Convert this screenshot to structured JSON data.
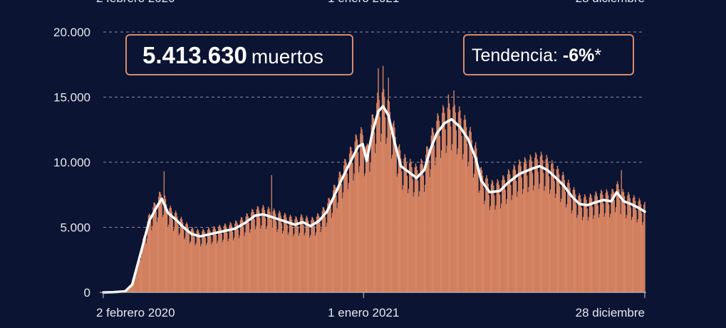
{
  "headline": {
    "total_value": "5.413.630",
    "total_unit": "muertos"
  },
  "trend": {
    "label": "Tendencia:",
    "value": "-6%",
    "mark": "*"
  },
  "colors": {
    "background": "#0b1432",
    "bars": "#e2926f",
    "bar_edge": "#bf6a4c",
    "line": "#ffffff",
    "grid": "#8a8fa3"
  },
  "chart_data": {
    "type": "bar",
    "title": "",
    "xlabel": "",
    "ylabel": "",
    "ylim": [
      0,
      20000
    ],
    "yticks": [
      "0",
      "5.000",
      "10.000",
      "15.000",
      "20.000"
    ],
    "ytick_values": [
      0,
      5000,
      10000,
      15000,
      20000
    ],
    "x_range": [
      "2020-02-02",
      "2021-12-28"
    ],
    "xtick_labels": [
      {
        "date": "2020-02-02",
        "label": "2 febrero 2020"
      },
      {
        "date": "2021-01-01",
        "label": "1 enero 2021"
      },
      {
        "date": "2021-12-28",
        "label": "28 diciembre"
      }
    ],
    "grid": "horizontal dashed",
    "series": [
      {
        "kind": "daily bars"
      },
      {
        "kind": "average line"
      }
    ],
    "line_points": [
      [
        "2020-02-02",
        0
      ],
      [
        "2020-02-15",
        20
      ],
      [
        "2020-03-01",
        80
      ],
      [
        "2020-03-10",
        600
      ],
      [
        "2020-03-20",
        2800
      ],
      [
        "2020-04-01",
        5500
      ],
      [
        "2020-04-12",
        6700
      ],
      [
        "2020-04-17",
        7200
      ],
      [
        "2020-04-25",
        6100
      ],
      [
        "2020-05-05",
        5600
      ],
      [
        "2020-05-15",
        5000
      ],
      [
        "2020-05-25",
        4500
      ],
      [
        "2020-06-05",
        4300
      ],
      [
        "2020-06-20",
        4500
      ],
      [
        "2020-07-05",
        4700
      ],
      [
        "2020-07-20",
        4900
      ],
      [
        "2020-08-01",
        5300
      ],
      [
        "2020-08-15",
        5900
      ],
      [
        "2020-08-25",
        6000
      ],
      [
        "2020-09-05",
        5800
      ],
      [
        "2020-09-20",
        5500
      ],
      [
        "2020-10-05",
        5200
      ],
      [
        "2020-10-15",
        5400
      ],
      [
        "2020-10-25",
        5100
      ],
      [
        "2020-11-05",
        5500
      ],
      [
        "2020-11-15",
        6200
      ],
      [
        "2020-11-25",
        7500
      ],
      [
        "2020-12-05",
        8800
      ],
      [
        "2020-12-15",
        10000
      ],
      [
        "2020-12-25",
        11200
      ],
      [
        "2020-12-31",
        11400
      ],
      [
        "2021-01-05",
        10100
      ],
      [
        "2021-01-12",
        12200
      ],
      [
        "2021-01-20",
        13900
      ],
      [
        "2021-01-26",
        14300
      ],
      [
        "2021-02-02",
        13600
      ],
      [
        "2021-02-10",
        11500
      ],
      [
        "2021-02-18",
        9700
      ],
      [
        "2021-03-01",
        9200
      ],
      [
        "2021-03-10",
        8800
      ],
      [
        "2021-03-20",
        9400
      ],
      [
        "2021-03-28",
        11000
      ],
      [
        "2021-04-05",
        12200
      ],
      [
        "2021-04-15",
        13000
      ],
      [
        "2021-04-24",
        13300
      ],
      [
        "2021-05-05",
        12700
      ],
      [
        "2021-05-15",
        11800
      ],
      [
        "2021-05-25",
        10300
      ],
      [
        "2021-06-01",
        8600
      ],
      [
        "2021-06-12",
        7700
      ],
      [
        "2021-06-25",
        7800
      ],
      [
        "2021-07-05",
        8400
      ],
      [
        "2021-07-20",
        9100
      ],
      [
        "2021-08-05",
        9500
      ],
      [
        "2021-08-15",
        9700
      ],
      [
        "2021-08-25",
        9400
      ],
      [
        "2021-09-05",
        8800
      ],
      [
        "2021-09-15",
        8200
      ],
      [
        "2021-09-25",
        7400
      ],
      [
        "2021-10-05",
        6800
      ],
      [
        "2021-10-15",
        6700
      ],
      [
        "2021-10-25",
        6900
      ],
      [
        "2021-11-05",
        7100
      ],
      [
        "2021-11-15",
        7000
      ],
      [
        "2021-11-22",
        7700
      ],
      [
        "2021-12-01",
        7000
      ],
      [
        "2021-12-10",
        6800
      ],
      [
        "2021-12-20",
        6500
      ],
      [
        "2021-12-28",
        6200
      ]
    ],
    "spikes": [
      [
        "2020-04-20",
        9300
      ],
      [
        "2020-09-05",
        9000
      ],
      [
        "2021-01-20",
        17200
      ],
      [
        "2021-01-26",
        17400
      ],
      [
        "2021-02-02",
        16500
      ],
      [
        "2021-04-20",
        15200
      ],
      [
        "2021-04-27",
        15500
      ],
      [
        "2021-11-28",
        9400
      ]
    ]
  }
}
